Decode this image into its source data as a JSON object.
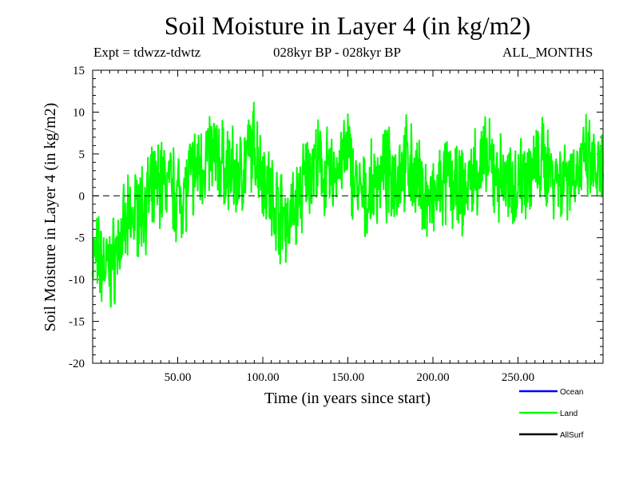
{
  "chart_data": {
    "type": "line",
    "title": "Soil Moisture in Layer 4 (in kg/m2)",
    "experiment_label": "Expt = tdwzz-tdwtz",
    "period_label": "028kyr BP - 028kyr BP",
    "season_label": "ALL_MONTHS",
    "xlabel": "Time (in years since start)",
    "ylabel": "Soil Moisture in Layer 4 (in kg/m2)",
    "xlim": [
      0,
      300
    ],
    "ylim": [
      -20,
      15
    ],
    "x_ticks": [
      50,
      100,
      150,
      200,
      250
    ],
    "x_tick_labels": [
      "50.00",
      "100.00",
      "150.00",
      "200.00",
      "250.00"
    ],
    "y_ticks": [
      -20,
      -15,
      -10,
      -5,
      0,
      5,
      10,
      15
    ],
    "y_tick_labels": [
      "-20",
      "-15",
      "-10",
      "-5",
      "0",
      "5",
      "10",
      "15"
    ],
    "zero_line": "dashed",
    "legend": [
      {
        "name": "Ocean",
        "color": "#0000ff"
      },
      {
        "name": "Land",
        "color": "#00ff00"
      },
      {
        "name": "AllSurf",
        "color": "#000000"
      }
    ],
    "series": [
      {
        "name": "Land",
        "color": "#00ff00",
        "x": [
          0,
          5,
          10,
          15,
          20,
          25,
          30,
          35,
          40,
          45,
          50,
          55,
          60,
          65,
          70,
          75,
          80,
          85,
          90,
          95,
          100,
          105,
          110,
          115,
          120,
          125,
          130,
          135,
          140,
          145,
          150,
          155,
          160,
          165,
          170,
          175,
          180,
          185,
          190,
          195,
          200,
          205,
          210,
          215,
          220,
          225,
          230,
          235,
          240,
          245,
          250,
          255,
          260,
          265,
          270,
          275,
          280,
          285,
          290,
          295,
          300
        ],
        "values": [
          -7,
          -8,
          -9,
          -6,
          -4,
          -2,
          -1,
          0,
          2,
          1,
          0,
          1,
          3,
          4,
          5,
          4,
          3,
          2,
          4,
          6,
          3,
          0,
          -2,
          -3,
          -1,
          2,
          4,
          3,
          2,
          4,
          5,
          1,
          -1,
          1,
          3,
          2,
          3,
          4,
          2,
          0,
          -1,
          1,
          2,
          0,
          1,
          3,
          4,
          3,
          2,
          1,
          2,
          3,
          3,
          4,
          3,
          2,
          3,
          3,
          4,
          3,
          2
        ],
        "noise_amplitude": 4,
        "seed": 7
      }
    ]
  }
}
